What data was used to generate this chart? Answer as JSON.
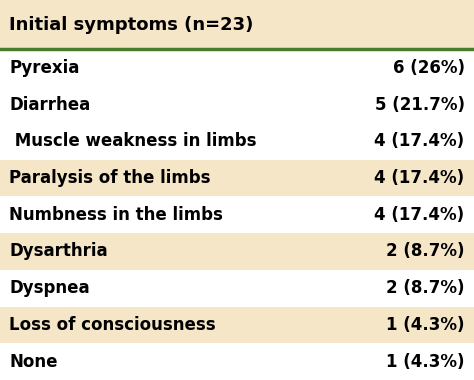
{
  "title": "Initial symptoms (n=23)",
  "rows": [
    {
      "symptom": "Pyrexia",
      "value": "6 (26%)",
      "shaded": false
    },
    {
      "symptom": "Diarrhea",
      "value": "5 (21.7%)",
      "shaded": false
    },
    {
      "symptom": " Muscle weakness in limbs",
      "value": "4 (17.4%)",
      "shaded": false
    },
    {
      "symptom": "Paralysis of the limbs",
      "value": "4 (17.4%)",
      "shaded": true
    },
    {
      "symptom": "Numbness in the limbs",
      "value": "4 (17.4%)",
      "shaded": false
    },
    {
      "symptom": "Dysarthria",
      "value": "2 (8.7%)",
      "shaded": true
    },
    {
      "symptom": "Dyspnea",
      "value": "2 (8.7%)",
      "shaded": false
    },
    {
      "symptom": "Loss of consciousness",
      "value": "1 (4.3%)",
      "shaded": true
    },
    {
      "symptom": "None",
      "value": "1 (4.3%)",
      "shaded": false
    }
  ],
  "header_bg": "#f5e6c8",
  "row_shaded_bg": "#f5e6c8",
  "row_unshaded_bg": "#ffffff",
  "header_line_color": "#4a7c2f",
  "text_color": "#000000",
  "title_fontsize": 13,
  "row_fontsize": 12,
  "fig_bg": "#ffffff"
}
